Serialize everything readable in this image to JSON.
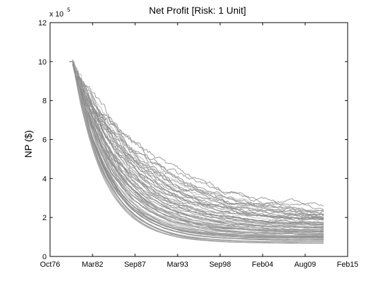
{
  "chart_data": {
    "type": "line",
    "title": "Net Profit [Risk: 1 Unit]",
    "xlabel": "",
    "ylabel": "NP ($)",
    "y_multiplier_label": "x 10",
    "y_multiplier_exponent": "5",
    "x_ticks": [
      "Oct76",
      "Mar82",
      "Sep87",
      "Mar93",
      "Sep98",
      "Feb04",
      "Aug09",
      "Feb15"
    ],
    "y_ticks": [
      "0",
      "2",
      "4",
      "6",
      "8",
      "10",
      "12"
    ],
    "ylim": [
      0,
      12
    ],
    "x_start": "Oct76",
    "x_end": "Feb15",
    "grid": false,
    "line_color": "#8c8c8c",
    "light_line_color": "#b4b4b4",
    "series_summary": [
      {
        "name": "",
        "x": [
          "Oct76",
          "Mar82",
          "Sep87",
          "Mar93",
          "Sep98",
          "Feb04",
          "Aug09",
          "Feb15"
        ],
        "upper": [
          null,
          7.0,
          6.2,
          4.1,
          3.3,
          2.4,
          2.2,
          null
        ],
        "lower": [
          null,
          3.0,
          1.1,
          0.85,
          0.75,
          0.7,
          0.65,
          null
        ]
      }
    ]
  }
}
